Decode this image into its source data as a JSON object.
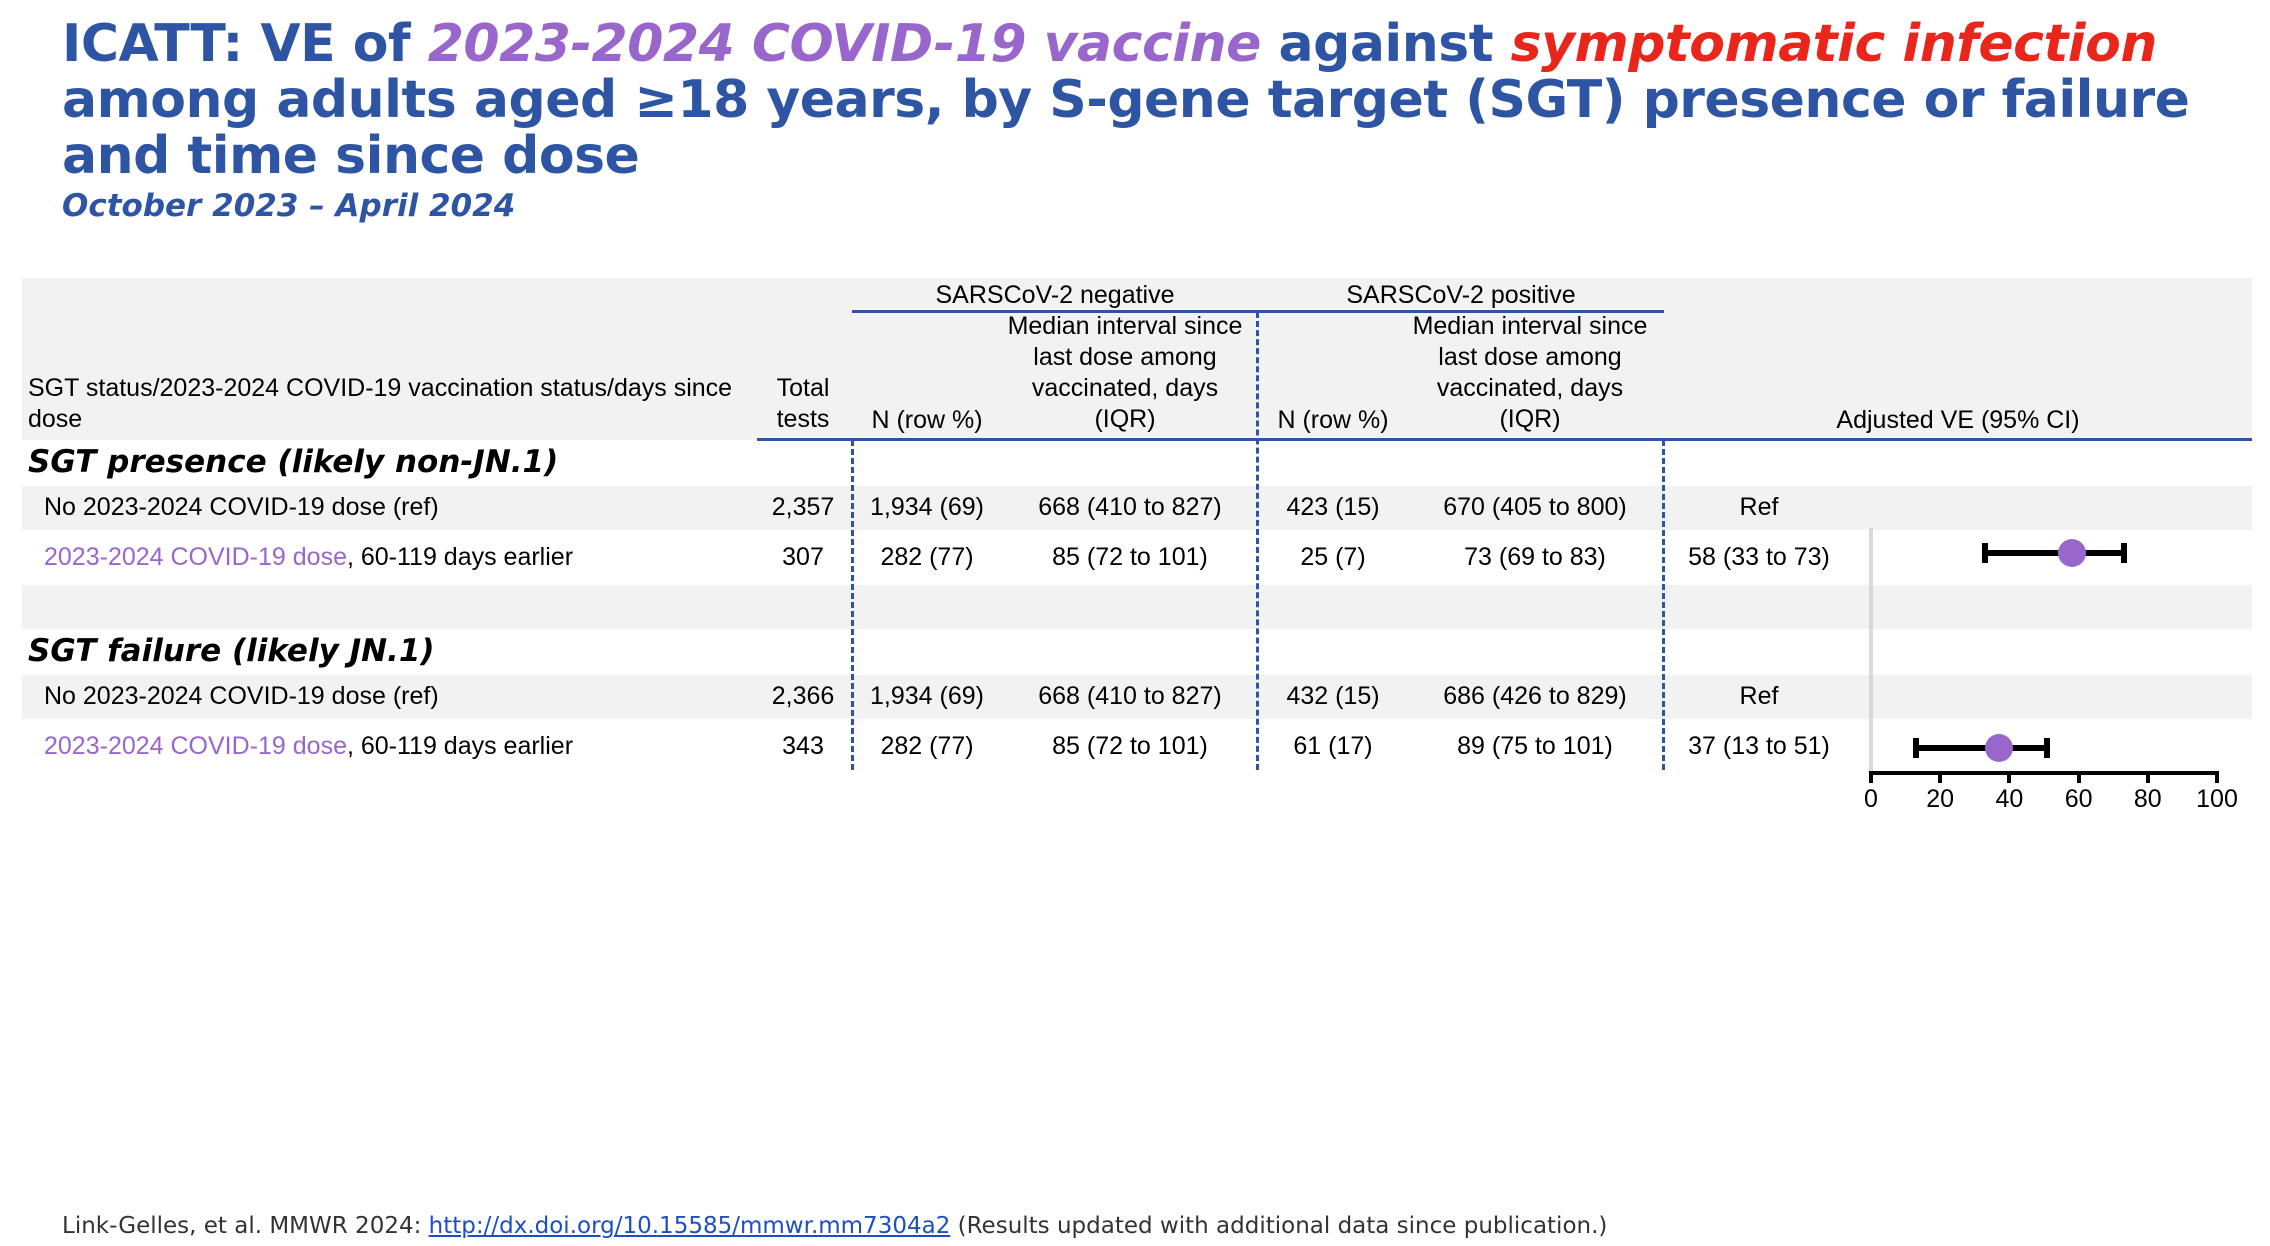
{
  "title": {
    "part1": "ICATT: VE of ",
    "part2": "2023-2024 COVID-19 vaccine",
    "part3": " against ",
    "part4": "symptomatic infection",
    "part5": " among adults aged ≥18 years, by S-gene target (SGT) presence or failure and time since dose"
  },
  "subtitle": "October 2023 – April 2024",
  "table": {
    "group_headers": {
      "negative": "SARSCoV-2 negative",
      "positive": "SARSCoV-2 positive"
    },
    "columns": {
      "status": "SGT status/2023-2024 COVID-19 vaccination status/days since dose",
      "total": "Total tests",
      "neg_n": "N (row %)",
      "neg_interval": "Median interval since last dose among vaccinated, days (IQR)",
      "pos_n": "N (row %)",
      "pos_interval": "Median interval since last dose among vaccinated, days (IQR)",
      "ve": "Adjusted VE (95% CI)"
    },
    "sections": [
      {
        "label": "SGT presence (likely non-JN.1)",
        "rows": [
          {
            "label_main": "No 2023-2024 COVID-19 dose (ref)",
            "label_suffix": "",
            "total": "2,357",
            "neg_n": "1,934 (69)",
            "neg_interval": "668 (410 to 827)",
            "pos_n": "423 (15)",
            "pos_interval": "670 (405 to 800)",
            "ve": "Ref"
          },
          {
            "label_main": "2023-2024 COVID-19 dose",
            "label_suffix": ", 60-119 days earlier",
            "total": "307",
            "neg_n": "282 (77)",
            "neg_interval": "85 (72 to 101)",
            "pos_n": "25 (7)",
            "pos_interval": "73 (69 to 83)",
            "ve": "58 (33 to 73)"
          }
        ]
      },
      {
        "label": "SGT failure (likely JN.1)",
        "rows": [
          {
            "label_main": "No 2023-2024 COVID-19 dose (ref)",
            "label_suffix": "",
            "total": "2,366",
            "neg_n": "1,934 (69)",
            "neg_interval": "668 (410 to 827)",
            "pos_n": "432 (15)",
            "pos_interval": "686 (426 to 829)",
            "ve": "Ref"
          },
          {
            "label_main": "2023-2024 COVID-19 dose",
            "label_suffix": ", 60-119 days earlier",
            "total": "343",
            "neg_n": "282 (77)",
            "neg_interval": "85 (72 to 101)",
            "pos_n": "61 (17)",
            "pos_interval": "89 (75 to 101)",
            "ve": "37 (13 to 51)"
          }
        ]
      }
    ]
  },
  "chart_data": {
    "type": "scatter",
    "xlim": [
      0,
      100
    ],
    "x_ticks": [
      "0",
      "20",
      "40",
      "60",
      "80",
      "100"
    ],
    "series": [
      {
        "estimate": 58,
        "lower": 33,
        "upper": 73
      },
      {
        "estimate": 37,
        "lower": 13,
        "upper": 51
      }
    ],
    "marker_color": "#9966cc"
  },
  "footer": {
    "citation": "Link-Gelles, et al. MMWR 2024: ",
    "link": "http://dx.doi.org/10.15585/mmwr.mm7304a2",
    "note": " (Results updated with additional data since publication.)"
  },
  "colors": {
    "title_blue": "#2e55a4",
    "purple": "#9966cc",
    "red": "#e8261c"
  }
}
